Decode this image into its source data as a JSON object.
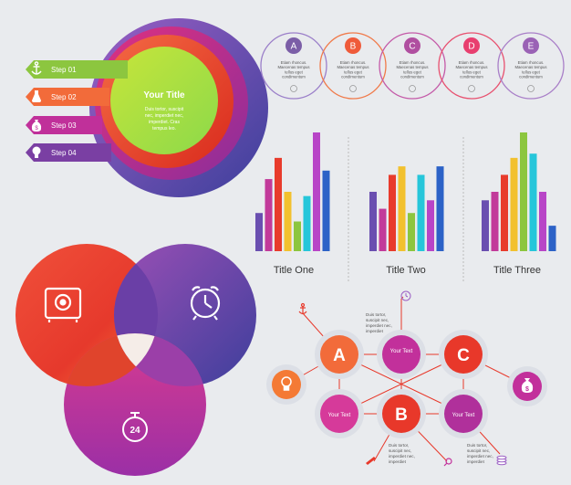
{
  "steps_panel": {
    "title": "Your Title",
    "body": [
      "Duis tortor, suscipit",
      "nec, imperdiet nec,",
      "imperdiet. Cras",
      "tempus leo."
    ],
    "steps": [
      {
        "label": "Step 01",
        "icon": "anchor-icon",
        "color": "#8cc63f"
      },
      {
        "label": "Step 02",
        "icon": "flask-icon",
        "color": "#f26b3a"
      },
      {
        "label": "Step 03",
        "icon": "money-bag-icon",
        "color": "#c0309a"
      },
      {
        "label": "Step 04",
        "icon": "lightbulb-icon",
        "color": "#7a3fa3"
      }
    ]
  },
  "timeline": {
    "items": [
      {
        "letter": "A",
        "color": "#7b5ea7",
        "icon": "anchor-icon",
        "text": [
          "Etiam rhoncus.",
          "Maecenas tempus",
          "tellus eget",
          "condimentum"
        ]
      },
      {
        "letter": "B",
        "color": "#ef5b3a",
        "icon": "lightbulb-icon",
        "text": [
          "Etiam rhoncus.",
          "Maecenas tempus",
          "tellus eget",
          "condimentum"
        ]
      },
      {
        "letter": "C",
        "color": "#b04fa0",
        "icon": "clock-icon",
        "text": [
          "Etiam rhoncus.",
          "Maecenas tempus",
          "tellus eget",
          "condimentum"
        ]
      },
      {
        "letter": "D",
        "color": "#e83f6f",
        "icon": "flask-icon",
        "text": [
          "Etiam rhoncus.",
          "Maecenas tempus",
          "tellus eget",
          "condimentum"
        ]
      },
      {
        "letter": "E",
        "color": "#9a62b5",
        "icon": "money-bag-icon",
        "text": [
          "Etiam rhoncus.",
          "Maecenas tempus",
          "tellus eget",
          "condimentum"
        ]
      }
    ]
  },
  "chart_data": [
    {
      "type": "bar",
      "title": "Title One",
      "values": [
        45,
        85,
        110,
        70,
        35,
        65,
        140,
        95
      ],
      "colors": [
        "#6a4fb0",
        "#c23a9a",
        "#e83b2c",
        "#f2c12e",
        "#8cc63f",
        "#26c6da",
        "#b845c7",
        "#2c62c7"
      ]
    },
    {
      "type": "bar",
      "title": "Title Two",
      "values": [
        70,
        50,
        90,
        100,
        45,
        90,
        60,
        100
      ],
      "colors": [
        "#6a4fb0",
        "#c23a9a",
        "#e83b2c",
        "#f2c12e",
        "#8cc63f",
        "#26c6da",
        "#b845c7",
        "#2c62c7"
      ]
    },
    {
      "type": "bar",
      "title": "Title Three",
      "values": [
        60,
        70,
        90,
        110,
        140,
        115,
        70,
        30
      ],
      "colors": [
        "#6a4fb0",
        "#c23a9a",
        "#e83b2c",
        "#f2c12e",
        "#8cc63f",
        "#26c6da",
        "#b845c7",
        "#2c62c7"
      ]
    }
  ],
  "venn": {
    "icons": [
      "safe-icon",
      "alarm-clock-icon",
      "stopwatch-24-icon"
    ],
    "stopwatch_number": "24"
  },
  "network": {
    "node_a": "A",
    "node_b": "B",
    "node_c": "C",
    "your_text": "Your Text",
    "text_lines": [
      "Duis tortor,",
      "suscipit nec,",
      "imperdiet nec,",
      "imperdiet"
    ],
    "icons": [
      "lightbulb-icon",
      "money-bag-icon",
      "anchor-icon",
      "clock-icon",
      "pencil-icon",
      "search-icon",
      "coins-icon"
    ]
  },
  "colors": {
    "background": "#e9ebee",
    "green": "#8cc63f",
    "orange": "#f26b3a",
    "magenta": "#c0309a",
    "purple": "#5b3fa8",
    "red": "#e8382a"
  }
}
